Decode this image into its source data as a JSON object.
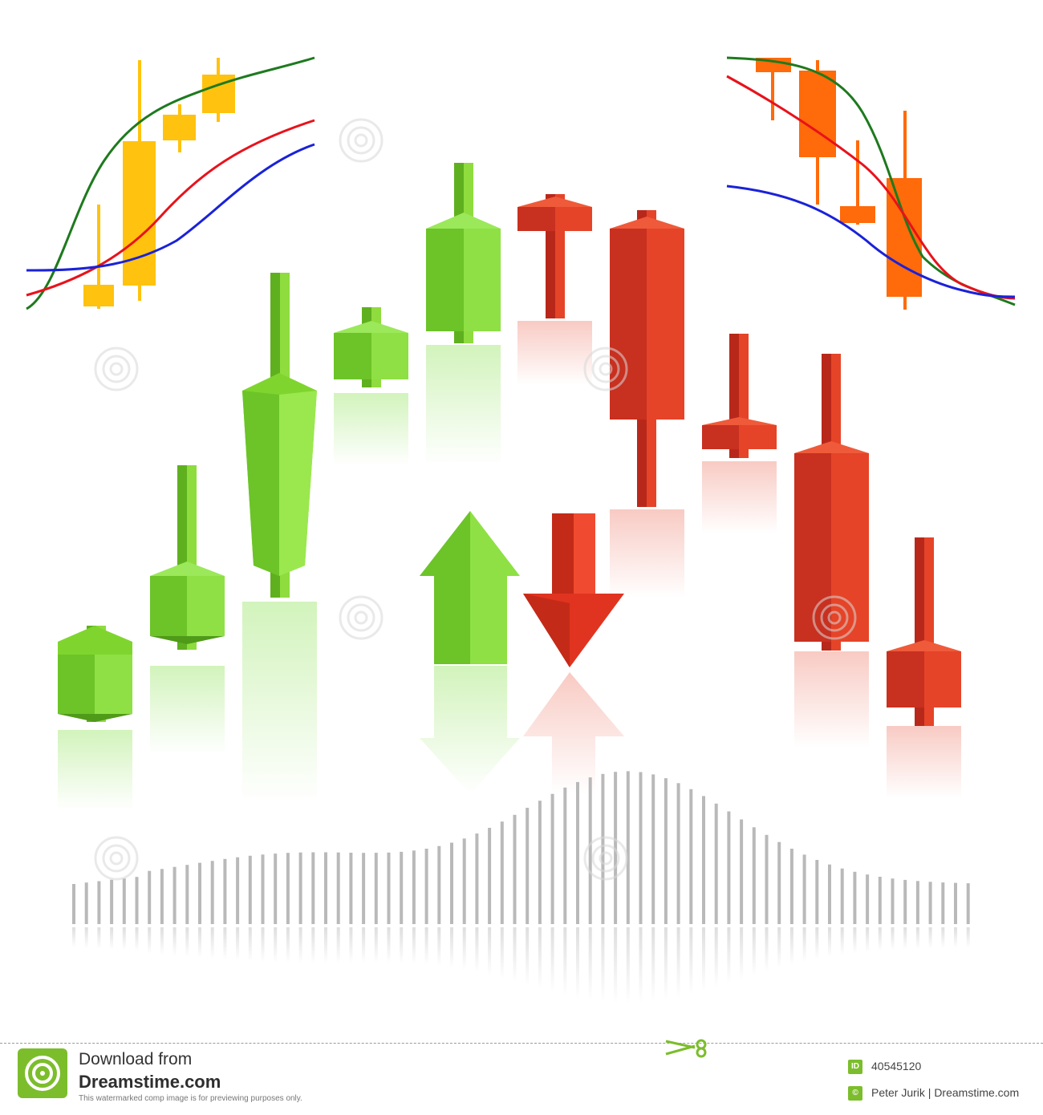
{
  "footer": {
    "download_title": "Download from",
    "brand": "Dreamstime.com",
    "notice": "This watermarked comp image is for previewing purposes only.",
    "id_badge": "ID",
    "image_id": "40545120",
    "copyright_symbol": "©",
    "author": "Peter Jurik | Dreamstime.com"
  },
  "colors": {
    "green": "#7fd52e",
    "green_dark": "#5fb01f",
    "red": "#e03420",
    "red_dark": "#b8281a",
    "yellow": "#ffc20e",
    "orange": "#ff6a0a",
    "line_green": "#1e7a1e",
    "line_red": "#e8121b",
    "line_blue": "#1a22d8",
    "volume_gray": "#b9b9b9",
    "brand_green": "#7cbd2c"
  },
  "icons": [
    "dreamstime-logo-icon",
    "scissors-icon",
    "id-badge-icon",
    "copyright-icon",
    "swirl-watermark-icon"
  ]
}
